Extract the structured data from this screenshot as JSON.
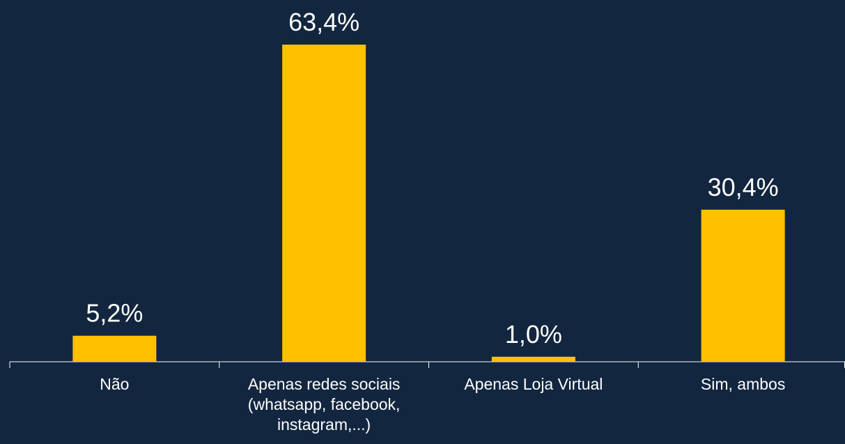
{
  "chart_data": {
    "type": "bar",
    "categories": [
      "Não",
      "Apenas redes sociais (whatsapp, facebook, instagram,...)",
      "Apenas Loja Virtual",
      "Sim, ambos"
    ],
    "values": [
      5.2,
      63.4,
      1.0,
      30.4
    ],
    "value_labels": [
      "5,2%",
      "63,4%",
      "1,0%",
      "30,4%"
    ],
    "color": "#ffc000"
  }
}
